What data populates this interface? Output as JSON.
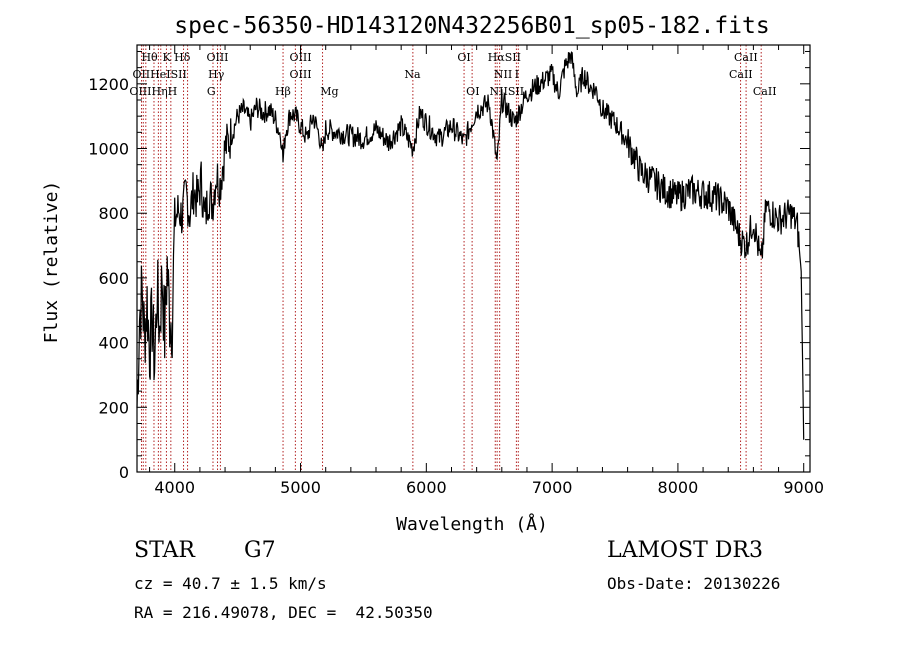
{
  "chart_data": {
    "type": "line",
    "title": "spec-56350-HD143120N432256B01_sp05-182.fits",
    "xlabel": "Wavelength (Å)",
    "ylabel": "Flux (relative)",
    "xlim": [
      3700,
      9050
    ],
    "ylim": [
      0,
      1320
    ],
    "xticks": [
      4000,
      5000,
      6000,
      7000,
      8000,
      9000
    ],
    "yticks": [
      0,
      200,
      400,
      600,
      800,
      1000,
      1200
    ],
    "x_tick_labels": [
      "4000",
      "5000",
      "6000",
      "7000",
      "8000",
      "9000"
    ],
    "y_tick_labels": [
      "0",
      "200",
      "400",
      "600",
      "800",
      "1000",
      "1200"
    ],
    "series": [
      {
        "name": "spectrum",
        "x": [
          3700,
          3720,
          3740,
          3760,
          3780,
          3800,
          3820,
          3840,
          3860,
          3880,
          3900,
          3920,
          3940,
          3960,
          3980,
          4000,
          4030,
          4060,
          4090,
          4120,
          4150,
          4180,
          4210,
          4240,
          4270,
          4300,
          4330,
          4360,
          4400,
          4450,
          4500,
          4550,
          4600,
          4650,
          4700,
          4750,
          4800,
          4850,
          4861,
          4880,
          4920,
          4960,
          5000,
          5050,
          5100,
          5150,
          5175,
          5200,
          5300,
          5400,
          5500,
          5600,
          5700,
          5800,
          5893,
          5950,
          6000,
          6100,
          6200,
          6300,
          6400,
          6500,
          6563,
          6600,
          6700,
          6800,
          6900,
          7000,
          7050,
          7100,
          7150,
          7200,
          7250,
          7300,
          7350,
          7400,
          7500,
          7600,
          7650,
          7700,
          7800,
          7900,
          8000,
          8100,
          8200,
          8300,
          8400,
          8498,
          8542,
          8600,
          8662,
          8700,
          8800,
          8900,
          8950,
          8980,
          9000
        ],
        "values": [
          200,
          480,
          560,
          420,
          530,
          380,
          470,
          330,
          560,
          440,
          610,
          420,
          640,
          480,
          470,
          780,
          810,
          790,
          860,
          800,
          870,
          840,
          900,
          780,
          860,
          830,
          920,
          890,
          1000,
          1040,
          1100,
          1120,
          1080,
          1130,
          1110,
          1120,
          1090,
          1030,
          960,
          1050,
          1110,
          1100,
          1070,
          1030,
          1100,
          1040,
          980,
          1060,
          1050,
          1040,
          1030,
          1060,
          1020,
          1070,
          1000,
          1110,
          1080,
          1030,
          1070,
          1020,
          1120,
          1140,
          950,
          1150,
          1080,
          1170,
          1200,
          1230,
          1170,
          1250,
          1290,
          1170,
          1230,
          1190,
          1180,
          1120,
          1080,
          1020,
          980,
          930,
          900,
          870,
          850,
          870,
          860,
          850,
          820,
          720,
          700,
          780,
          640,
          820,
          780,
          800,
          760,
          620,
          100
        ]
      }
    ],
    "line_markers": [
      {
        "wavelength": 3736,
        "label": "OII"
      },
      {
        "wavelength": 3750,
        "label": "OIII"
      },
      {
        "wavelength": 3770,
        "label": "Hθ"
      },
      {
        "wavelength": 3835,
        "label": "Hη"
      },
      {
        "wavelength": 3870,
        "label": "HeI"
      },
      {
        "wavelength": 3889,
        "label": "HeI"
      },
      {
        "wavelength": 3934,
        "label": "K"
      },
      {
        "wavelength": 3969,
        "label": "H"
      },
      {
        "wavelength": 4070,
        "label": "SII"
      },
      {
        "wavelength": 4102,
        "label": "Hδ"
      },
      {
        "wavelength": 4304,
        "label": "G"
      },
      {
        "wavelength": 4340,
        "label": "Hγ"
      },
      {
        "wavelength": 4363,
        "label": "OIII"
      },
      {
        "wavelength": 4861,
        "label": "Hβ"
      },
      {
        "wavelength": 4959,
        "label": "OIII"
      },
      {
        "wavelength": 5007,
        "label": "OIII"
      },
      {
        "wavelength": 5175,
        "label": "Mg"
      },
      {
        "wavelength": 5893,
        "label": "Na"
      },
      {
        "wavelength": 6300,
        "label": "OI"
      },
      {
        "wavelength": 6364,
        "label": "OI"
      },
      {
        "wavelength": 6548,
        "label": "NII"
      },
      {
        "wavelength": 6563,
        "label": "Hα"
      },
      {
        "wavelength": 6583,
        "label": "NII"
      },
      {
        "wavelength": 6716,
        "label": "SII"
      },
      {
        "wavelength": 6731,
        "label": "SII"
      },
      {
        "wavelength": 8498,
        "label": "CaII"
      },
      {
        "wavelength": 8542,
        "label": "CaII"
      },
      {
        "wavelength": 8662,
        "label": "CaII"
      }
    ],
    "marker_labels": [
      {
        "text": "Hθ",
        "x": 3800,
        "row": 0
      },
      {
        "text": "K",
        "x": 3935,
        "row": 0
      },
      {
        "text": "Hδ",
        "x": 4060,
        "row": 0
      },
      {
        "text": "OIII",
        "x": 4340,
        "row": 0
      },
      {
        "text": "OIII",
        "x": 5000,
        "row": 0
      },
      {
        "text": "OI",
        "x": 6300,
        "row": 0
      },
      {
        "text": "HαSII",
        "x": 6620,
        "row": 0
      },
      {
        "text": "CaII",
        "x": 8540,
        "row": 0
      },
      {
        "text": "OIIHeISII",
        "x": 3880,
        "row": 1
      },
      {
        "text": "Hγ",
        "x": 4330,
        "row": 1
      },
      {
        "text": "OIII",
        "x": 5000,
        "row": 1
      },
      {
        "text": "Na",
        "x": 5890,
        "row": 1
      },
      {
        "text": "NII",
        "x": 6610,
        "row": 1
      },
      {
        "text": "I",
        "x": 6720,
        "row": 1
      },
      {
        "text": "CaII",
        "x": 8500,
        "row": 1
      },
      {
        "text": "OIIIHηH",
        "x": 3830,
        "row": 2
      },
      {
        "text": "G",
        "x": 4290,
        "row": 2
      },
      {
        "text": "Hβ",
        "x": 4860,
        "row": 2
      },
      {
        "text": "Mg",
        "x": 5230,
        "row": 2
      },
      {
        "text": "OI",
        "x": 6370,
        "row": 2
      },
      {
        "text": "NIISII",
        "x": 6640,
        "row": 2
      },
      {
        "text": "CaII",
        "x": 8690,
        "row": 2
      }
    ],
    "line_color": "#000000",
    "marker_color": "#b22222",
    "grid": false
  },
  "info": {
    "object_class": "STAR",
    "subclass": "G7",
    "survey": "LAMOST DR3",
    "redshift": "cz = 40.7 ± 1.5 km/s",
    "obs_date": "Obs-Date: 20130226",
    "coords": "RA = 216.49078, DEC =  42.50350"
  }
}
